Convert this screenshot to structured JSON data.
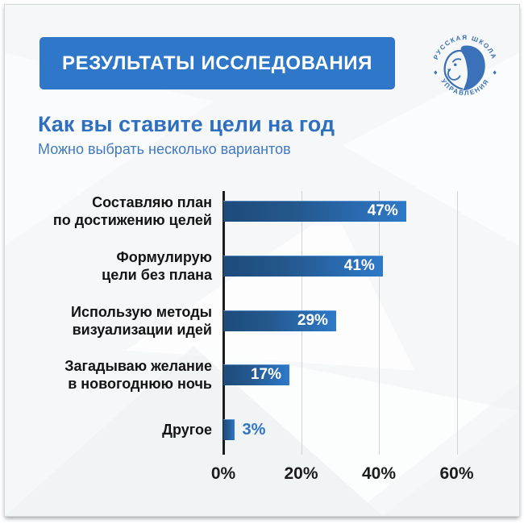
{
  "banner": {
    "title": "РЕЗУЛЬТАТЫ ИССЛЕДОВАНИЯ",
    "background": "#2f77c9"
  },
  "logo": {
    "top_text": "РУССКАЯ ШКОЛА",
    "bottom_text": "УПРАВЛЕНИЯ",
    "color": "#3b71b8"
  },
  "heading": {
    "title": "Как вы ставите цели на год",
    "subtitle": "Можно выбрать несколько вариантов"
  },
  "chart_data": {
    "type": "bar",
    "orientation": "horizontal",
    "categories": [
      "Составляю план\nпо достижению целей",
      "Формулирую\nцели без плана",
      "Использую методы\nвизуализации идей",
      "Загадываю желание\nв новогоднюю ночь",
      "Другое"
    ],
    "values": [
      47,
      41,
      29,
      17,
      3
    ],
    "value_labels": [
      "47%",
      "41%",
      "29%",
      "17%",
      "3%"
    ],
    "x_ticks": [
      "0%",
      "20%",
      "40%",
      "60%"
    ],
    "x_tick_values": [
      0,
      20,
      40,
      60
    ],
    "xlim": [
      0,
      65
    ],
    "grid": true,
    "legend": false,
    "bar_gradient": [
      "#1d4b7a",
      "#2e79c9"
    ],
    "inside_label_color": "#ffffff",
    "outside_label_color": "#2e75c4"
  }
}
